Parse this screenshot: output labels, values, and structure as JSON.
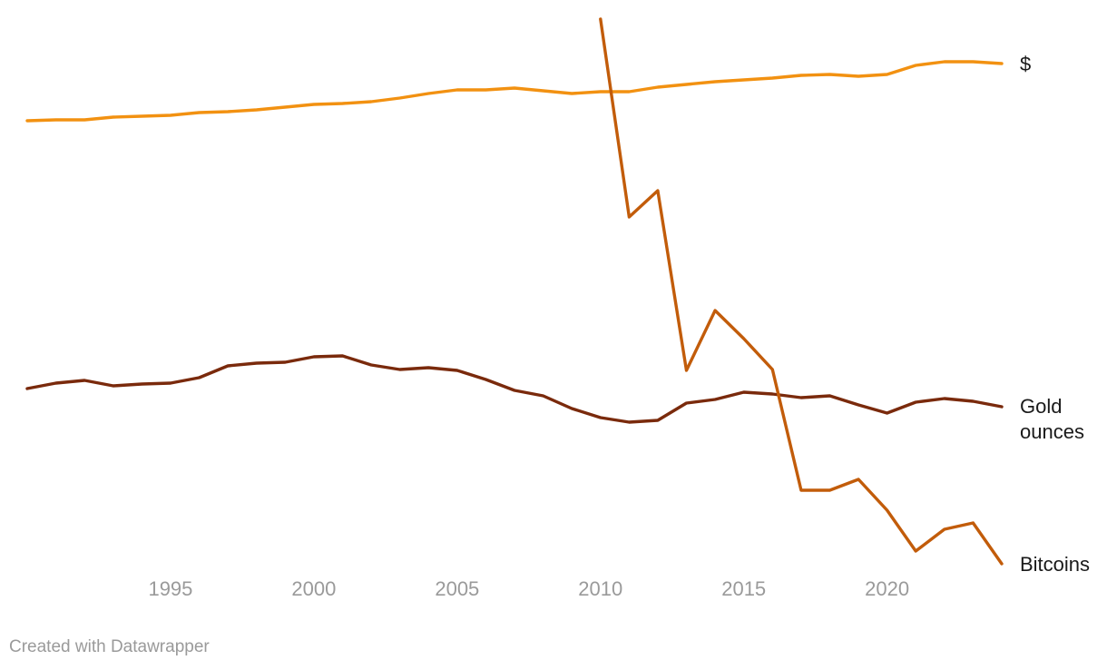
{
  "credit": "Created with Datawrapper",
  "chart_data": {
    "type": "line",
    "x_ticks": [
      1995,
      2000,
      2005,
      2010,
      2015,
      2020
    ],
    "series": [
      {
        "name": "$",
        "color": "#f29111",
        "x": [
          1990,
          1991,
          1992,
          1993,
          1994,
          1995,
          1996,
          1997,
          1998,
          1999,
          2000,
          2001,
          2002,
          2003,
          2004,
          2005,
          2006,
          2007,
          2008,
          2009,
          2010,
          2011,
          2012,
          2013,
          2014,
          2015,
          2016,
          2017,
          2018,
          2019,
          2020,
          2021,
          2022,
          2023,
          2024
        ],
        "y": [
          133,
          132,
          132,
          129,
          128,
          127,
          124,
          123,
          121,
          118,
          115,
          114,
          112,
          108,
          103,
          99,
          99,
          97,
          100,
          103,
          101,
          101,
          96,
          93,
          90,
          88,
          86,
          83,
          82,
          84,
          82,
          72,
          68,
          68,
          70
        ]
      },
      {
        "name": "Gold ounces",
        "color": "#7a2a0c",
        "x": [
          1990,
          1991,
          1992,
          1993,
          1994,
          1995,
          1996,
          1997,
          1998,
          1999,
          2000,
          2001,
          2002,
          2003,
          2004,
          2005,
          2006,
          2007,
          2008,
          2009,
          2010,
          2011,
          2012,
          2013,
          2014,
          2015,
          2016,
          2017,
          2018,
          2019,
          2020,
          2021,
          2022,
          2023,
          2024
        ],
        "y": [
          428,
          422,
          419,
          425,
          423,
          422,
          416,
          403,
          400,
          399,
          393,
          392,
          402,
          407,
          405,
          408,
          418,
          430,
          436,
          450,
          460,
          465,
          463,
          444,
          440,
          432,
          434,
          438,
          436,
          446,
          455,
          443,
          439,
          442,
          448
        ]
      },
      {
        "name": "Bitcoins",
        "color": "#c25c0a",
        "x": [
          2010,
          2011,
          2012,
          2013,
          2014,
          2015,
          2016,
          2017,
          2018,
          2019,
          2020,
          2021,
          2022,
          2023,
          2024
        ],
        "y": [
          21,
          239,
          210,
          408,
          342,
          373,
          407,
          540,
          540,
          528,
          562,
          607,
          583,
          576,
          621
        ]
      }
    ]
  }
}
